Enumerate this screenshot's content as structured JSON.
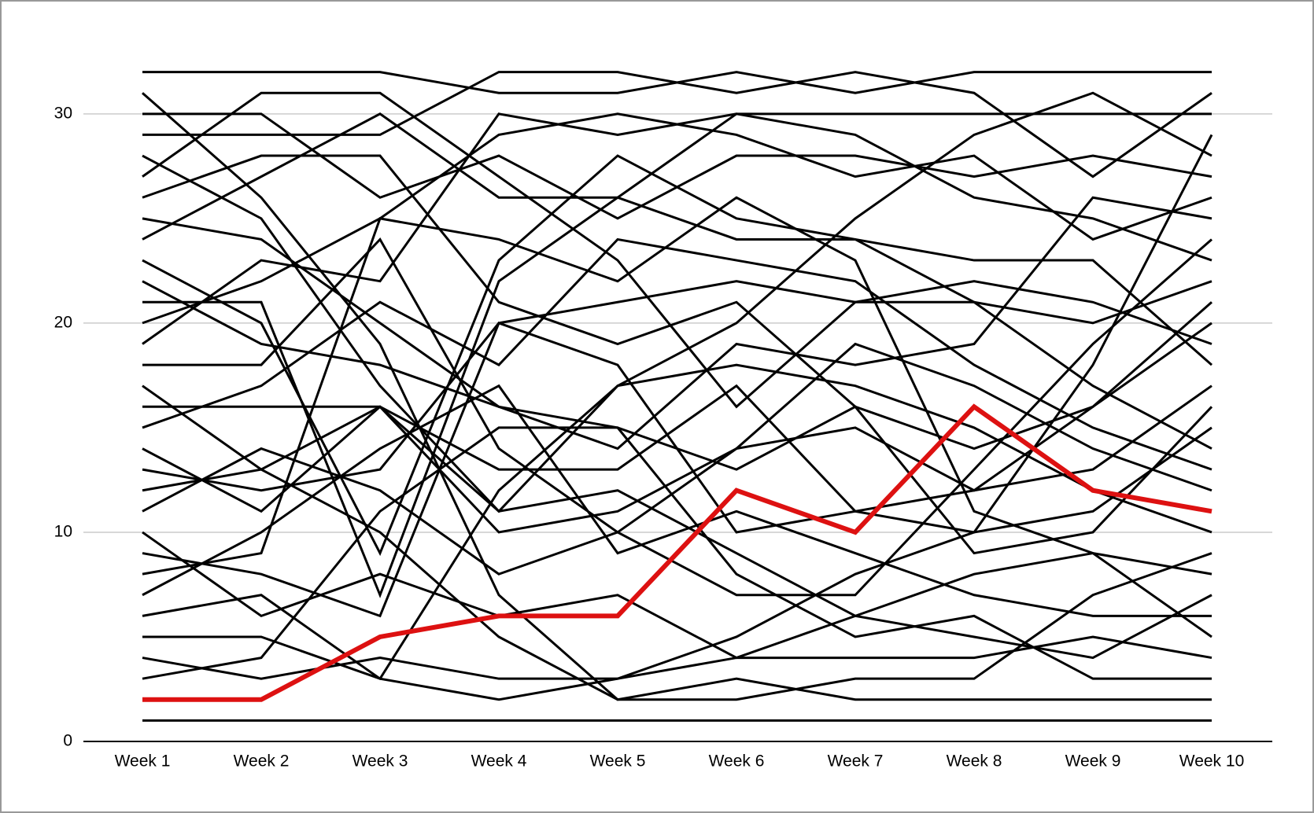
{
  "chart_data": {
    "type": "line",
    "categories": [
      "Week 1",
      "Week 2",
      "Week 3",
      "Week 4",
      "Week 5",
      "Week 6",
      "Week 7",
      "Week 8",
      "Week 9",
      "Week 10"
    ],
    "ylim": [
      0,
      33
    ],
    "yticks": [
      0,
      10,
      20,
      30
    ],
    "grid": true,
    "series": [
      {
        "color": "#000000",
        "values": [
          32,
          32,
          32,
          31,
          31,
          32,
          31,
          32,
          32,
          32
        ]
      },
      {
        "color": "#000000",
        "values": [
          31,
          26,
          19,
          7,
          2,
          3,
          2,
          2,
          2,
          2
        ]
      },
      {
        "color": "#000000",
        "values": [
          30,
          30,
          26,
          28,
          25,
          28,
          28,
          27,
          28,
          27
        ]
      },
      {
        "color": "#000000",
        "values": [
          29,
          29,
          29,
          32,
          32,
          31,
          32,
          31,
          27,
          31
        ]
      },
      {
        "color": "#000000",
        "values": [
          28,
          25,
          17,
          11,
          12,
          9,
          6,
          5,
          4,
          7
        ]
      },
      {
        "color": "#000000",
        "values": [
          27,
          31,
          31,
          27,
          23,
          16,
          21,
          21,
          20,
          22
        ]
      },
      {
        "color": "#000000",
        "values": [
          26,
          28,
          28,
          21,
          19,
          21,
          16,
          14,
          16,
          20
        ]
      },
      {
        "color": "#000000",
        "values": [
          25,
          24,
          20,
          16,
          15,
          13,
          16,
          9,
          10,
          16
        ]
      },
      {
        "color": "#000000",
        "values": [
          24,
          27,
          30,
          26,
          26,
          24,
          24,
          21,
          17,
          14
        ]
      },
      {
        "color": "#000000",
        "values": [
          23,
          20,
          9,
          23,
          28,
          25,
          24,
          23,
          23,
          18
        ]
      },
      {
        "color": "#000000",
        "values": [
          22,
          19,
          18,
          16,
          14,
          19,
          18,
          19,
          26,
          25
        ]
      },
      {
        "color": "#000000",
        "values": [
          21,
          21,
          7,
          22,
          26,
          30,
          30,
          30,
          30,
          30
        ]
      },
      {
        "color": "#000000",
        "values": [
          20,
          22,
          25,
          29,
          30,
          29,
          27,
          28,
          24,
          26
        ]
      },
      {
        "color": "#000000",
        "values": [
          19,
          23,
          22,
          30,
          29,
          30,
          29,
          26,
          25,
          23
        ]
      },
      {
        "color": "#000000",
        "values": [
          18,
          18,
          24,
          14,
          10,
          7,
          7,
          13,
          19,
          24
        ]
      },
      {
        "color": "#000000",
        "values": [
          17,
          13,
          10,
          5,
          2,
          2,
          3,
          3,
          7,
          9
        ]
      },
      {
        "color": "#000000",
        "values": [
          16,
          16,
          16,
          10,
          11,
          14,
          15,
          12,
          16,
          21
        ]
      },
      {
        "color": "#000000",
        "values": [
          15,
          17,
          21,
          18,
          24,
          23,
          22,
          18,
          15,
          13
        ]
      },
      {
        "color": "#000000",
        "values": [
          14,
          11,
          16,
          13,
          13,
          17,
          11,
          10,
          11,
          15
        ]
      },
      {
        "color": "#000000",
        "values": [
          13,
          12,
          13,
          20,
          21,
          22,
          21,
          22,
          21,
          19
        ]
      },
      {
        "color": "#000000",
        "values": [
          12,
          13,
          16,
          11,
          17,
          18,
          17,
          15,
          12,
          10
        ]
      },
      {
        "color": "#000000",
        "values": [
          11,
          14,
          12,
          8,
          10,
          14,
          19,
          17,
          14,
          12
        ]
      },
      {
        "color": "#000000",
        "values": [
          10,
          6,
          8,
          6,
          7,
          4,
          6,
          8,
          9,
          5
        ]
      },
      {
        "color": "#000000",
        "values": [
          9,
          8,
          6,
          20,
          18,
          10,
          11,
          12,
          13,
          17
        ]
      },
      {
        "color": "#000000",
        "values": [
          8,
          9,
          25,
          24,
          22,
          26,
          23,
          11,
          9,
          8
        ]
      },
      {
        "color": "#000000",
        "values": [
          7,
          10,
          14,
          17,
          9,
          11,
          9,
          7,
          6,
          6
        ]
      },
      {
        "color": "#000000",
        "values": [
          6,
          7,
          3,
          2,
          3,
          5,
          8,
          10,
          18,
          29
        ]
      },
      {
        "color": "#000000",
        "values": [
          5,
          5,
          3,
          12,
          17,
          20,
          25,
          29,
          31,
          28
        ]
      },
      {
        "color": "#000000",
        "values": [
          4,
          3,
          4,
          3,
          3,
          4,
          4,
          4,
          5,
          4
        ]
      },
      {
        "color": "#000000",
        "values": [
          3,
          4,
          11,
          15,
          15,
          8,
          5,
          6,
          3,
          3
        ]
      },
      {
        "color": "#dd1111",
        "values": [
          2,
          2,
          5,
          6,
          6,
          12,
          10,
          16,
          12,
          11
        ]
      },
      {
        "color": "#000000",
        "values": [
          1,
          1,
          1,
          1,
          1,
          1,
          1,
          1,
          1,
          1
        ]
      }
    ]
  }
}
